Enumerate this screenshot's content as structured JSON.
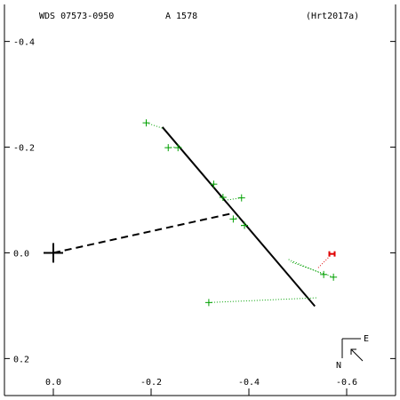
{
  "header": {
    "wds": "WDS 07573-0950",
    "discoverer": "A  1578",
    "reference": "(Hrt2017a)"
  },
  "compass": {
    "east_label": "E",
    "north_label": "N"
  },
  "chart_data": {
    "type": "scatter",
    "title": "",
    "xlabel": "",
    "ylabel": "",
    "xlim": [
      0.1,
      -0.7
    ],
    "ylim": [
      -0.47,
      0.27
    ],
    "x_ticks": [
      -0.6,
      -0.4,
      -0.2,
      0.0
    ],
    "x_tick_labels": [
      "-0.6",
      "-0.4",
      "-0.2",
      "0.0"
    ],
    "y_ticks": [
      0.2,
      0.0,
      -0.2,
      -0.4
    ],
    "y_tick_labels": [
      "0.2",
      "0.0",
      "-0.2",
      "-0.4"
    ],
    "grid": false,
    "primary": [
      0.0,
      0.0
    ],
    "orbit_line": [
      [
        -0.535,
        0.101
      ],
      [
        -0.223,
        -0.238
      ]
    ],
    "separation_line": [
      [
        -0.0,
        0.0
      ],
      [
        -0.367,
        -0.075
      ]
    ],
    "series": [
      {
        "points": [
          [
            -0.318,
            0.094
          ],
          [
            -0.573,
            0.046
          ],
          [
            -0.553,
            0.041
          ],
          [
            -0.391,
            -0.052
          ],
          [
            -0.368,
            -0.064
          ],
          [
            -0.385,
            -0.104
          ],
          [
            -0.347,
            -0.105
          ],
          [
            -0.328,
            -0.13
          ],
          [
            -0.255,
            -0.199
          ],
          [
            -0.235,
            -0.199
          ],
          [
            -0.19,
            -0.246
          ]
        ],
        "residuals": [
          [
            [
              -0.318,
              0.094
            ],
            [
              -0.54,
              0.085
            ]
          ],
          [
            [
              -0.573,
              0.046
            ],
            [
              -0.485,
              0.017
            ]
          ],
          [
            [
              -0.553,
              0.041
            ],
            [
              -0.48,
              0.012
            ]
          ],
          [
            [
              -0.391,
              -0.052
            ],
            [
              -0.385,
              -0.05
            ]
          ],
          [
            [
              -0.368,
              -0.064
            ],
            [
              -0.38,
              -0.068
            ]
          ],
          [
            [
              -0.385,
              -0.104
            ],
            [
              -0.355,
              -0.1
            ]
          ],
          [
            [
              -0.347,
              -0.105
            ],
            [
              -0.35,
              -0.105
            ]
          ],
          [
            [
              -0.328,
              -0.13
            ],
            [
              -0.33,
              -0.13
            ]
          ],
          [
            [
              -0.255,
              -0.199
            ],
            [
              -0.265,
              -0.2
            ]
          ],
          [
            [
              -0.235,
              -0.199
            ],
            [
              -0.25,
              -0.2
            ]
          ],
          [
            [
              -0.19,
              -0.246
            ],
            [
              -0.226,
              -0.235
            ]
          ]
        ],
        "color": "#00a000"
      },
      {
        "points": [
          [
            -0.57,
            0.002
          ]
        ],
        "residuals": [
          [
            [
              -0.57,
              0.002
            ],
            [
              -0.54,
              0.03
            ]
          ]
        ],
        "color": "#e00000"
      }
    ]
  }
}
